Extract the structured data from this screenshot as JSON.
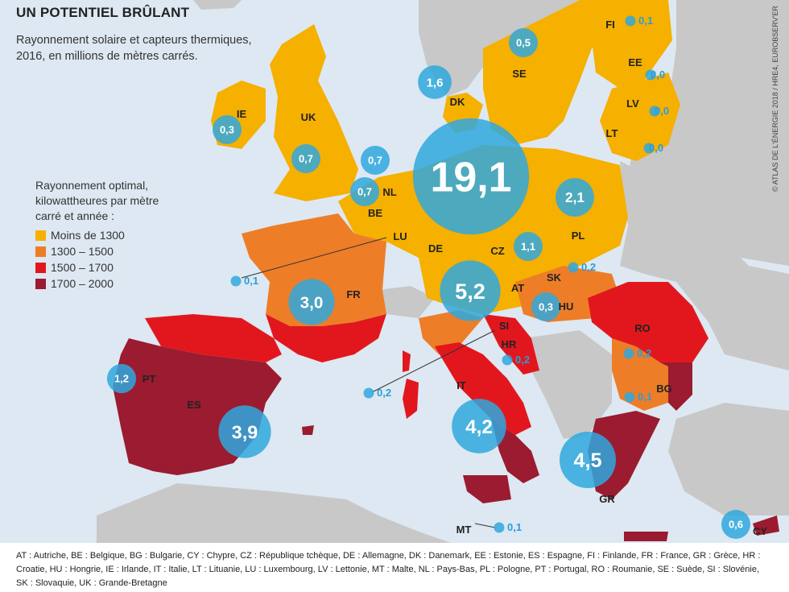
{
  "title": "UN POTENTIEL BRÛLANT",
  "subtitle": "Rayonnement solaire et capteurs thermiques, 2016, en millions de mètres carrés.",
  "legend": {
    "title": "Rayonnement optimal, kilowattheures par mètre carré et année :",
    "items": [
      {
        "label": "Moins de 1300",
        "color": "#f5b000"
      },
      {
        "label": "1300 – 1500",
        "color": "#ee7d28"
      },
      {
        "label": "1500 – 1700",
        "color": "#e2171e"
      },
      {
        "label": "1700 – 2000",
        "color": "#9b1b30"
      }
    ]
  },
  "credit": "© ATLAS DE L'ÉNERGIE 2018 / HRE4, EUROBSERV'ER",
  "countries": [
    {
      "code": "IE",
      "value": "0,3",
      "value_num": 0.3
    },
    {
      "code": "UK",
      "value": "0,7",
      "value_num": 0.7
    },
    {
      "code": "NL",
      "value": "0,7",
      "value_num": 0.7
    },
    {
      "code": "BE",
      "value": "0,7",
      "value_num": 0.7
    },
    {
      "code": "LU",
      "value": "0,1",
      "value_num": 0.1
    },
    {
      "code": "DK",
      "value": "1,6",
      "value_num": 1.6
    },
    {
      "code": "DE",
      "value": "19,1",
      "value_num": 19.1
    },
    {
      "code": "FR",
      "value": "3,0",
      "value_num": 3.0
    },
    {
      "code": "PT",
      "value": "1,2",
      "value_num": 1.2
    },
    {
      "code": "ES",
      "value": "3,9",
      "value_num": 3.9
    },
    {
      "code": "IT",
      "value": "4,2",
      "value_num": 4.2
    },
    {
      "code": "MT",
      "value": "0,1",
      "value_num": 0.1
    },
    {
      "code": "SE",
      "value": "0,5",
      "value_num": 0.5
    },
    {
      "code": "FI",
      "value": "0,1",
      "value_num": 0.1
    },
    {
      "code": "EE",
      "value": "0,0",
      "value_num": 0.0
    },
    {
      "code": "LV",
      "value": "0,0",
      "value_num": 0.0
    },
    {
      "code": "LT",
      "value": "0,0",
      "value_num": 0.0
    },
    {
      "code": "PL",
      "value": "2,1",
      "value_num": 2.1
    },
    {
      "code": "CZ",
      "value": "1,1",
      "value_num": 1.1
    },
    {
      "code": "SK",
      "value": "0,2",
      "value_num": 0.2
    },
    {
      "code": "AT",
      "value": "5,2",
      "value_num": 5.2
    },
    {
      "code": "HU",
      "value": "0,3",
      "value_num": 0.3
    },
    {
      "code": "SI",
      "value": "0,2",
      "value_num": 0.2
    },
    {
      "code": "HR",
      "value": "0,2",
      "value_num": 0.2
    },
    {
      "code": "RO",
      "value": "0,2",
      "value_num": 0.2
    },
    {
      "code": "BG",
      "value": "0,1",
      "value_num": 0.1
    },
    {
      "code": "GR",
      "value": "4,5",
      "value_num": 4.5
    },
    {
      "code": "CY",
      "value": "0,6",
      "value_num": 0.6
    }
  ],
  "footer": "AT : Autriche, BE : Belgique, BG : Bulgarie, CY : Chypre, CZ : République tchèque, DE : Allemagne, DK : Danemark, EE : Estonie, ES : Espagne, FI : Finlande, FR : France, GR : Grèce, HR : Croatie, HU : Hongrie, IE : Irlande, IT : Italie, LT : Lituanie, LU : Luxembourg, LV : Lettonie, MT : Malte, NL : Pays-Bas, PL : Pologne, PT : Portugal, RO : Roumanie, SE : Suède, SI : Slovénie, SK : Slovaquie, UK : Grande-Bretagne"
}
